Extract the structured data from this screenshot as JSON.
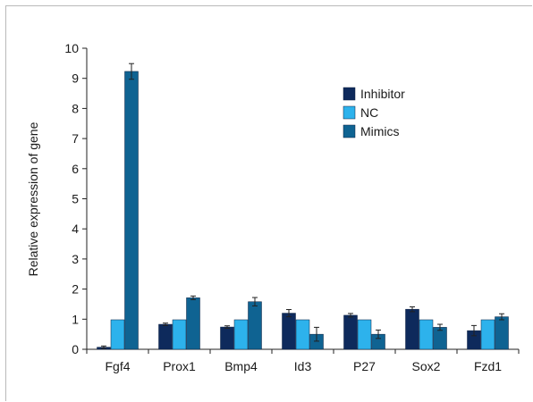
{
  "chart_data": {
    "type": "bar",
    "title": "",
    "xlabel": "",
    "ylabel": "Relative expression of gene",
    "ylim": [
      0,
      10
    ],
    "yticks": [
      "0",
      "1",
      "2",
      "3",
      "4",
      "5",
      "6",
      "7",
      "8",
      "9",
      "10"
    ],
    "categories": [
      "Fgf4",
      "Prox1",
      "Bmp4",
      "Id3",
      "P27",
      "Sox2",
      "Fzd1"
    ],
    "series": [
      {
        "name": "Inhibitor",
        "color": "#0e2a5c",
        "values": [
          0.07,
          0.83,
          0.74,
          1.2,
          1.13,
          1.33,
          0.62
        ],
        "errors": [
          0.04,
          0.04,
          0.04,
          0.12,
          0.06,
          0.08,
          0.17
        ]
      },
      {
        "name": "NC",
        "color": "#2db2ec",
        "values": [
          0.98,
          0.98,
          0.98,
          0.98,
          0.98,
          0.98,
          0.98
        ],
        "errors": [
          0,
          0,
          0,
          0,
          0,
          0,
          0
        ]
      },
      {
        "name": "Mimics",
        "color": "#0f6392",
        "values": [
          9.23,
          1.71,
          1.58,
          0.5,
          0.5,
          0.73,
          1.08
        ],
        "errors": [
          0.26,
          0.06,
          0.14,
          0.23,
          0.14,
          0.1,
          0.1
        ]
      }
    ],
    "legend": {
      "position": "top-right"
    },
    "grid": false
  }
}
